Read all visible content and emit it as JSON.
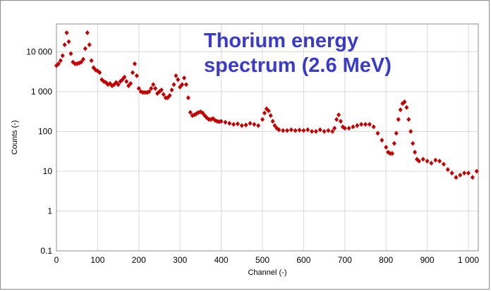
{
  "chart_data": {
    "type": "scatter",
    "title_lines": [
      "Thorium energy",
      "spectrum (2.6 MeV)"
    ],
    "xlabel": "Channel (-)",
    "ylabel": "Counts (-)",
    "xlim": [
      0,
      1024
    ],
    "ylim": [
      0.1,
      50000
    ],
    "yscale": "log",
    "grid": true,
    "x_ticks": [
      0,
      100,
      200,
      300,
      400,
      500,
      600,
      700,
      800,
      900,
      1000
    ],
    "x_tick_labels": [
      "0",
      "100",
      "200",
      "300",
      "400",
      "500",
      "600",
      "700",
      "800",
      "900",
      "1 000"
    ],
    "y_ticks": [
      0.1,
      1,
      10,
      100,
      1000,
      10000
    ],
    "y_tick_labels": [
      "0.1",
      "1",
      "10",
      "100",
      "1 000",
      "10 000"
    ],
    "series": [
      {
        "color": "#c00000",
        "marker": "diamond",
        "x": [
          0,
          5,
          10,
          15,
          20,
          25,
          30,
          35,
          40,
          45,
          50,
          55,
          60,
          65,
          70,
          75,
          80,
          85,
          90,
          95,
          100,
          105,
          110,
          115,
          120,
          125,
          130,
          135,
          140,
          145,
          150,
          155,
          160,
          165,
          170,
          175,
          180,
          185,
          190,
          195,
          200,
          205,
          210,
          215,
          220,
          225,
          230,
          235,
          240,
          245,
          250,
          255,
          260,
          265,
          270,
          275,
          280,
          285,
          290,
          295,
          300,
          305,
          310,
          315,
          320,
          325,
          330,
          335,
          340,
          345,
          350,
          355,
          360,
          365,
          370,
          375,
          380,
          385,
          390,
          395,
          400,
          410,
          420,
          430,
          440,
          450,
          460,
          470,
          480,
          490,
          500,
          505,
          510,
          515,
          520,
          525,
          530,
          535,
          540,
          550,
          560,
          570,
          580,
          590,
          600,
          610,
          620,
          630,
          640,
          650,
          660,
          670,
          675,
          680,
          685,
          690,
          695,
          700,
          710,
          720,
          730,
          740,
          750,
          760,
          770,
          780,
          790,
          800,
          805,
          810,
          815,
          820,
          825,
          830,
          835,
          840,
          845,
          850,
          855,
          860,
          865,
          870,
          875,
          880,
          890,
          900,
          910,
          920,
          930,
          940,
          950,
          960,
          970,
          980,
          990,
          1000,
          1010,
          1020
        ],
        "y": [
          4500,
          5000,
          6000,
          8000,
          15000,
          30000,
          18000,
          9000,
          5500,
          5000,
          5000,
          5200,
          5500,
          6500,
          12000,
          30000,
          15000,
          6000,
          4000,
          3500,
          3300,
          3000,
          2000,
          1800,
          1700,
          1500,
          1600,
          1400,
          1500,
          1700,
          1500,
          1800,
          2000,
          2300,
          1800,
          1400,
          1600,
          3000,
          5000,
          2500,
          1200,
          1000,
          950,
          950,
          950,
          1000,
          1200,
          1500,
          1200,
          900,
          1000,
          1100,
          850,
          700,
          700,
          800,
          1100,
          1500,
          2500,
          2000,
          1300,
          1500,
          2200,
          1500,
          700,
          300,
          250,
          260,
          280,
          300,
          310,
          290,
          250,
          220,
          200,
          200,
          210,
          190,
          180,
          175,
          180,
          170,
          160,
          150,
          155,
          140,
          145,
          160,
          150,
          140,
          200,
          290,
          370,
          330,
          250,
          180,
          140,
          120,
          110,
          105,
          105,
          110,
          105,
          108,
          105,
          110,
          100,
          100,
          110,
          100,
          105,
          100,
          120,
          200,
          260,
          180,
          130,
          120,
          120,
          130,
          140,
          150,
          150,
          150,
          130,
          90,
          60,
          40,
          30,
          28,
          28,
          50,
          90,
          200,
          350,
          500,
          550,
          400,
          200,
          100,
          50,
          30,
          20,
          18,
          20,
          18,
          16,
          19,
          18,
          15,
          11,
          9,
          7,
          8,
          9,
          9,
          7,
          10
        ]
      }
    ]
  }
}
